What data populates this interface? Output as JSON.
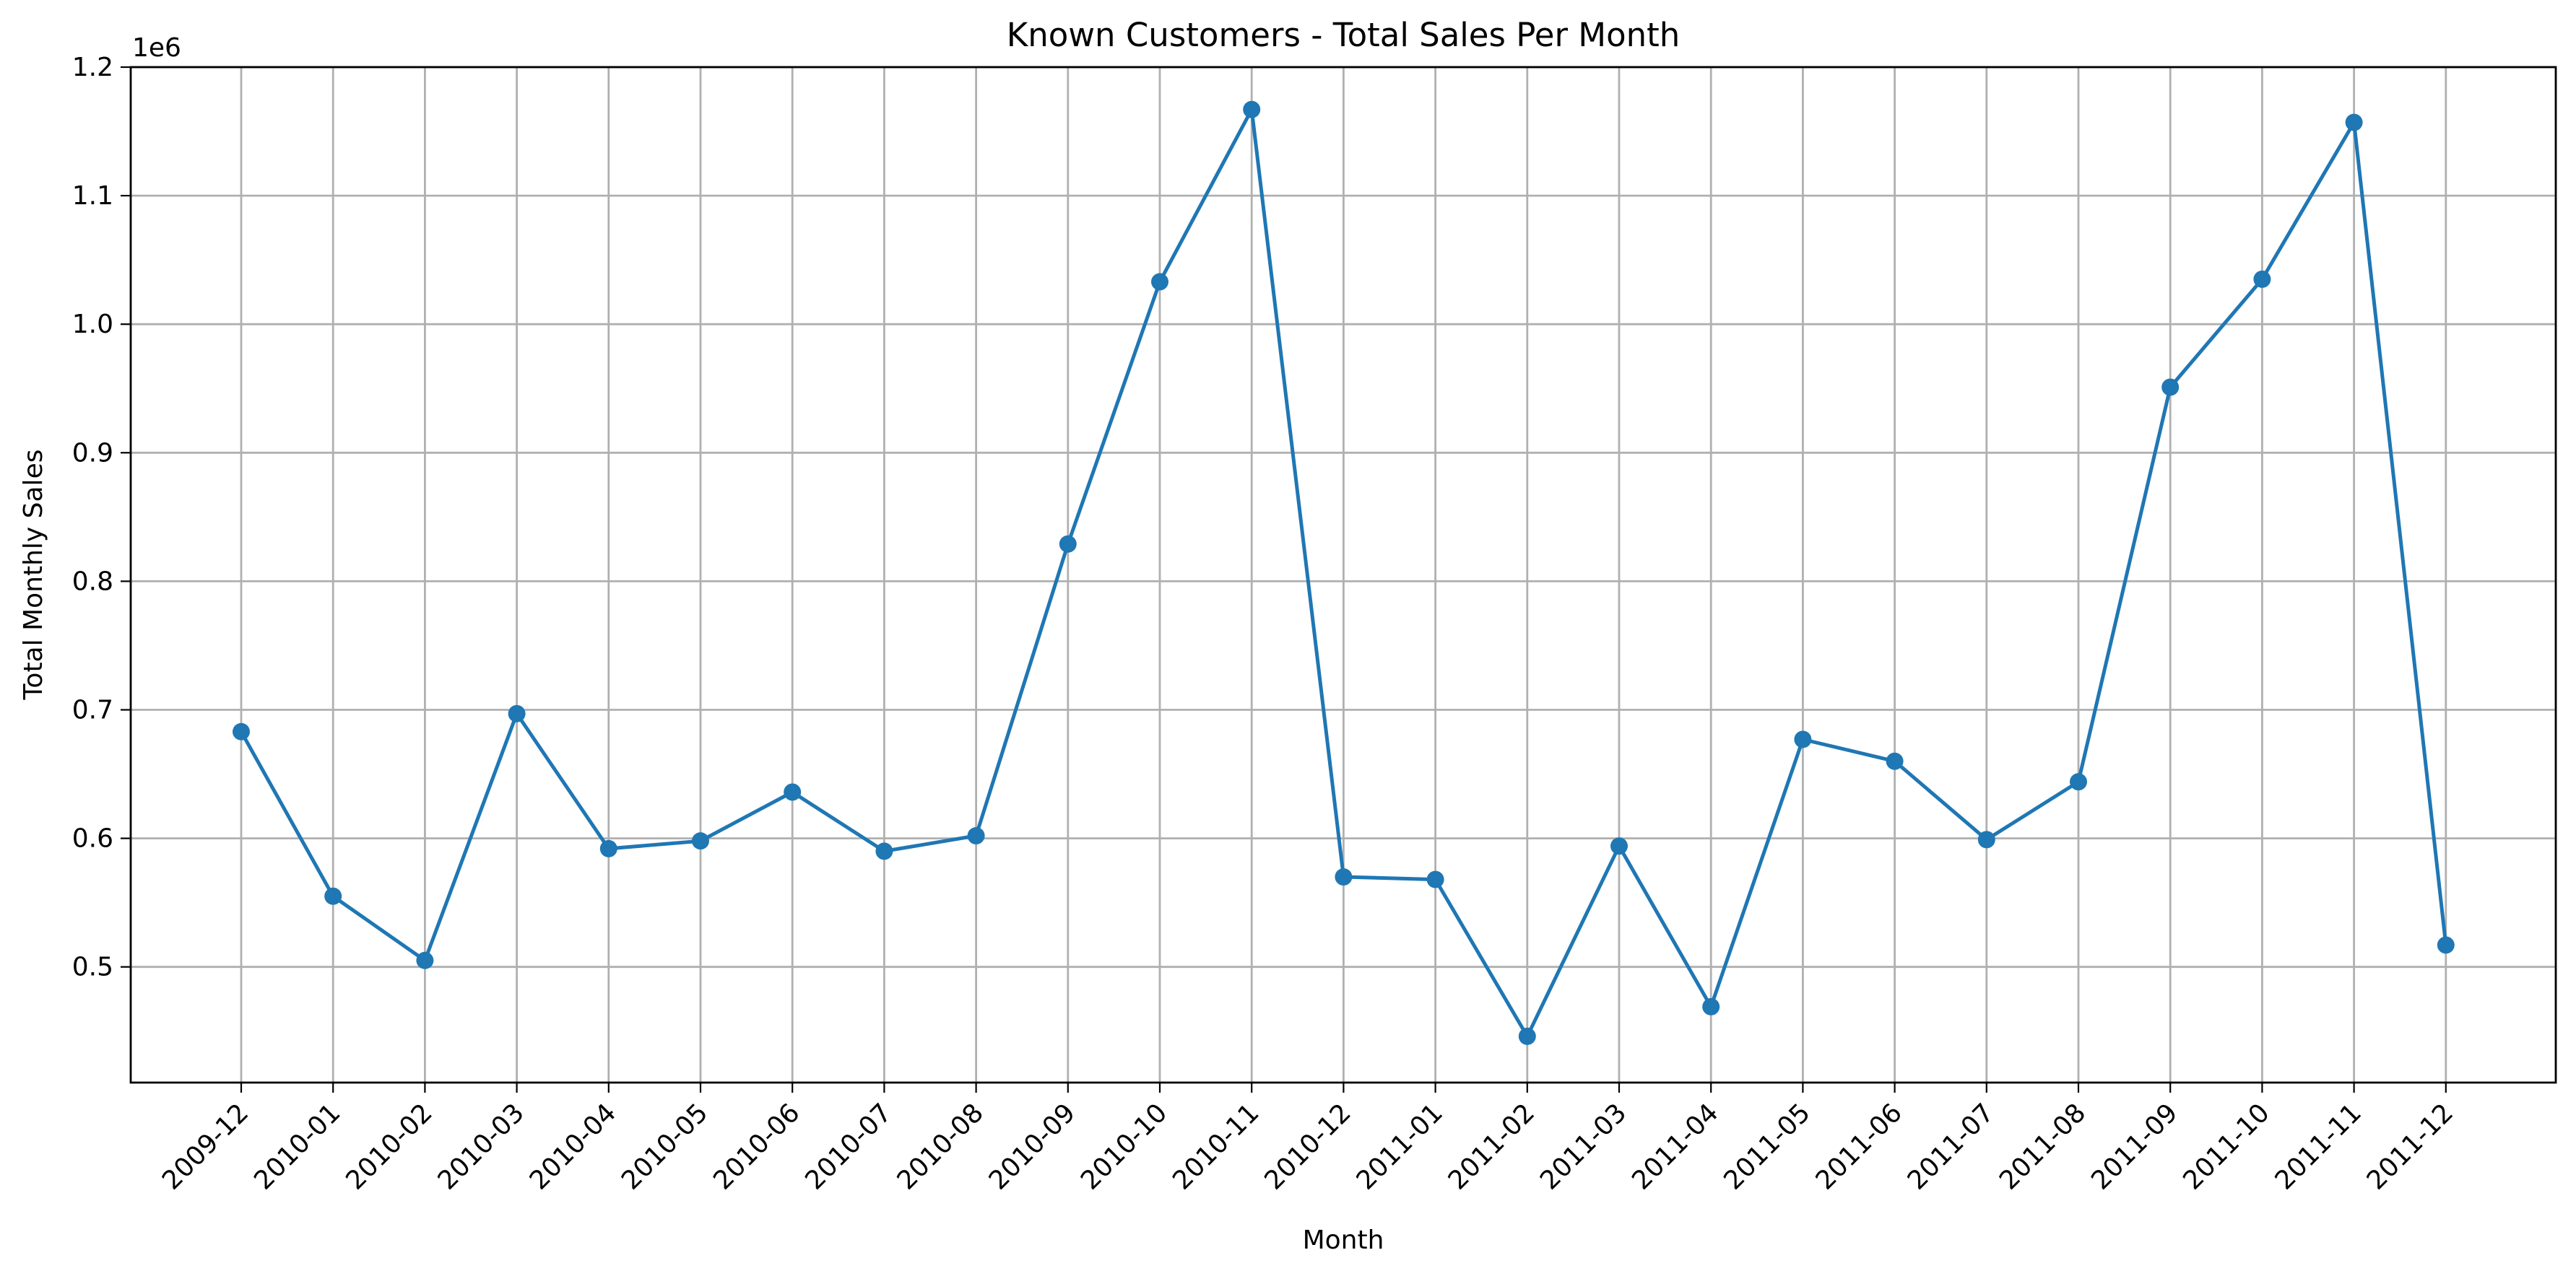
{
  "chart_data": {
    "type": "line",
    "title": "Known Customers - Total Sales Per Month",
    "xlabel": "Month",
    "ylabel": "Total Monthly Sales",
    "y_offset_label": "1e6",
    "y_scale": 1000000,
    "ylim": [
      410000,
      1200000
    ],
    "yticks": [
      0.5,
      0.6,
      0.7,
      0.8,
      0.9,
      1.0,
      1.1,
      1.2
    ],
    "ytick_labels": [
      "0.5",
      "0.6",
      "0.7",
      "0.8",
      "0.9",
      "1.0",
      "1.1",
      "1.2"
    ],
    "grid": true,
    "x_tick_rotation": 45,
    "color": "#1f77b4",
    "categories": [
      "2009-12",
      "2010-01",
      "2010-02",
      "2010-03",
      "2010-04",
      "2010-05",
      "2010-06",
      "2010-07",
      "2010-08",
      "2010-09",
      "2010-10",
      "2010-11",
      "2010-12",
      "2011-01",
      "2011-02",
      "2011-03",
      "2011-04",
      "2011-05",
      "2011-06",
      "2011-07",
      "2011-08",
      "2011-09",
      "2011-10",
      "2011-11",
      "2011-12"
    ],
    "series": [
      {
        "values": [
          683000,
          555000,
          505000,
          697000,
          592000,
          598000,
          636000,
          590000,
          602000,
          829000,
          1033000,
          1167000,
          570000,
          568000,
          446000,
          594000,
          469000,
          677000,
          660000,
          599000,
          644000,
          951000,
          1035000,
          1157000,
          517000
        ]
      }
    ]
  }
}
